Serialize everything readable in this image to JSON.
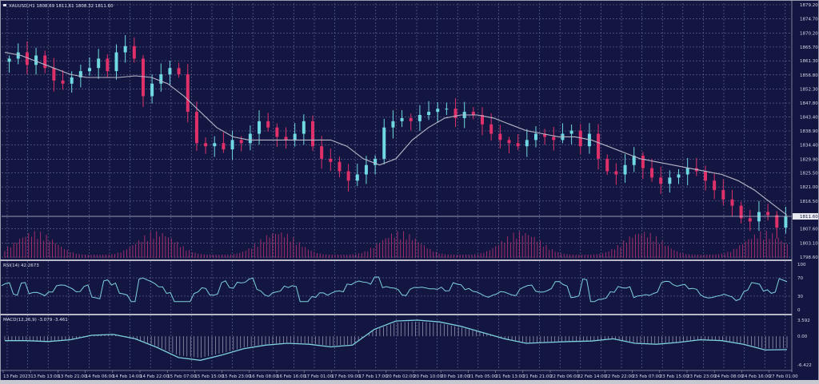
{
  "main_panel": {
    "title": "XAUUSD,H1  1808.69 1811.61 1808.32 1811.60",
    "current_price": "1811.60",
    "y_ticks": [
      "1879.20",
      "1874.70",
      "1870.20",
      "1865.70",
      "1861.30",
      "1856.80",
      "1852.30",
      "1847.80",
      "1843.40",
      "1838.90",
      "1834.40",
      "1829.90",
      "1825.50",
      "1821.00",
      "1816.50",
      "1811.60",
      "1807.60",
      "1803.10",
      "1798.60"
    ]
  },
  "rsi_panel": {
    "title": "RSI(14) 42.2673",
    "y_ticks": [
      "100",
      "70",
      "30",
      "0"
    ]
  },
  "macd_panel": {
    "title": "MACD(12,26,9) -3.079 -3.461",
    "y_ticks": [
      "3.592",
      "0.00",
      "-6.422"
    ]
  },
  "x_axis": {
    "labels": [
      "13 Feb 2023",
      "13 Feb 13:00",
      "13 Feb 21:00",
      "14 Feb 06:00",
      "14 Feb 14:00",
      "14 Feb 22:00",
      "15 Feb 07:00",
      "15 Feb 15:00",
      "15 Feb 23:00",
      "16 Feb 08:00",
      "16 Feb 16:00",
      "17 Feb 01:00",
      "17 Feb 09:00",
      "17 Feb 17:00",
      "20 Feb 02:00",
      "20 Feb 10:00",
      "20 Feb 18:00",
      "21 Feb 05:00",
      "21 Feb 13:00",
      "21 Feb 21:00",
      "22 Feb 06:00",
      "22 Feb 14:00",
      "22 Feb 22:00",
      "23 Feb 07:00",
      "23 Feb 15:00",
      "23 Feb 23:00",
      "24 Feb 08:00",
      "24 Feb 16:00",
      "27 Feb 01:00"
    ]
  },
  "colors": {
    "background": "#131640",
    "grid": "#6a6d9a",
    "bull": "#6fd8e0",
    "bear": "#e0306a",
    "ma": "#b8b8c8",
    "volume": "#b03070",
    "rsi": "#7fd0e0",
    "macd": "#7fd0e0",
    "histogram": "#a8a8c0",
    "separator": "#b8b8c8"
  },
  "chart_data": {
    "type": "candlestick",
    "title": "XAUUSD,H1",
    "ohlc_last": {
      "open": 1808.69,
      "high": 1811.61,
      "low": 1808.32,
      "close": 1811.6
    },
    "price_range": [
      1798.6,
      1879.2
    ],
    "price_path": [
      1862,
      1864,
      1860,
      1863,
      1859,
      1855,
      1854,
      1856,
      1858,
      1859,
      1862,
      1858,
      1864,
      1866,
      1862,
      1850,
      1854,
      1857,
      1859,
      1857,
      1845,
      1835,
      1834,
      1835,
      1833,
      1836,
      1835,
      1838,
      1842,
      1840,
      1837,
      1836,
      1838,
      1842,
      1834,
      1830,
      1829,
      1826,
      1823,
      1825,
      1828,
      1830,
      1840,
      1842,
      1843,
      1842,
      1844,
      1845,
      1846,
      1846,
      1843,
      1845,
      1844,
      1841,
      1838,
      1836,
      1835,
      1834,
      1836,
      1838,
      1837,
      1836,
      1838,
      1839,
      1834,
      1838,
      1830,
      1826,
      1825,
      1828,
      1831,
      1827,
      1824,
      1822,
      1824,
      1825,
      1827,
      1826,
      1823,
      1820,
      1817,
      1815,
      1811,
      1810,
      1813,
      1812,
      1808,
      1811.6
    ],
    "ma_path": [
      1864,
      1863,
      1861,
      1859,
      1857,
      1856,
      1856,
      1856,
      1856.5,
      1856,
      1854,
      1850,
      1845,
      1840,
      1837,
      1836,
      1836,
      1836,
      1836,
      1836,
      1836,
      1834,
      1830,
      1828,
      1830,
      1836,
      1840,
      1843,
      1844,
      1844,
      1843,
      1841,
      1839,
      1838,
      1837,
      1837,
      1836,
      1834,
      1832,
      1830,
      1829,
      1828,
      1827,
      1826,
      1825,
      1823,
      1820,
      1816,
      1812
    ],
    "rsi": {
      "period": 14,
      "value": 42.2673,
      "levels": [
        70,
        30
      ],
      "range": [
        0,
        100
      ]
    },
    "macd": {
      "params": [
        12,
        26,
        9
      ],
      "main": -3.079,
      "signal": -3.461,
      "range": [
        -6.422,
        3.592
      ]
    },
    "x_labels_ref": "x_axis.labels"
  }
}
